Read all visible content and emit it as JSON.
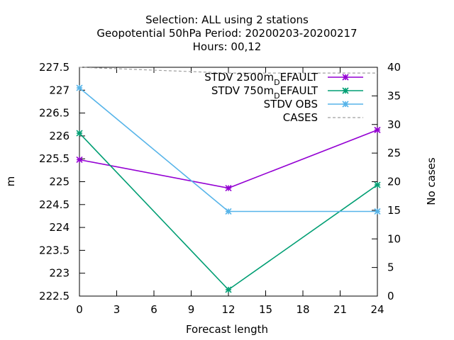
{
  "chart_data": {
    "type": "line",
    "title_lines": [
      "Selection: ALL using     2 stations",
      "Geopotential 50hPa   Period: 20200203-20200217",
      "Hours:  00,12"
    ],
    "xlabel": "Forecast length",
    "ylabel": "m",
    "y2label": "No cases",
    "x_ticks": [
      0,
      3,
      6,
      9,
      12,
      15,
      18,
      21,
      24
    ],
    "y_ticks": [
      "222.5",
      "223",
      "223.5",
      "224",
      "224.5",
      "225",
      "225.5",
      "226",
      "226.5",
      "227",
      "227.5"
    ],
    "y2_ticks": [
      "0",
      "5",
      "10",
      "15",
      "20",
      "25",
      "30",
      "35",
      "40"
    ],
    "xlim": [
      0,
      24
    ],
    "ylim": [
      222.5,
      227.5
    ],
    "y2lim": [
      0,
      40
    ],
    "series": [
      {
        "name": "STDV 2500m",
        "name_sub": "D",
        "name_tail": "EFAULT",
        "color": "#9400d3",
        "axis": "y1",
        "marker": "asterisk",
        "x": [
          0,
          12,
          24
        ],
        "values": [
          225.48,
          224.86,
          226.13
        ]
      },
      {
        "name": "STDV 750m",
        "name_sub": "D",
        "name_tail": "EFAULT",
        "color": "#009e73",
        "axis": "y1",
        "marker": "asterisk",
        "x": [
          0,
          12,
          24
        ],
        "values": [
          226.06,
          222.64,
          224.93
        ]
      },
      {
        "name": "STDV OBS",
        "name_sub": "",
        "name_tail": "",
        "color": "#56b4e9",
        "axis": "y1",
        "marker": "asterisk",
        "x": [
          0,
          12,
          24
        ],
        "values": [
          227.05,
          224.35,
          224.35
        ]
      },
      {
        "name": "CASES",
        "name_sub": "",
        "name_tail": "",
        "color": "#a0a0a0",
        "axis": "y2",
        "marker": "none",
        "dashed": true,
        "x": [
          0,
          12,
          24
        ],
        "values": [
          40,
          39,
          39
        ]
      }
    ]
  }
}
